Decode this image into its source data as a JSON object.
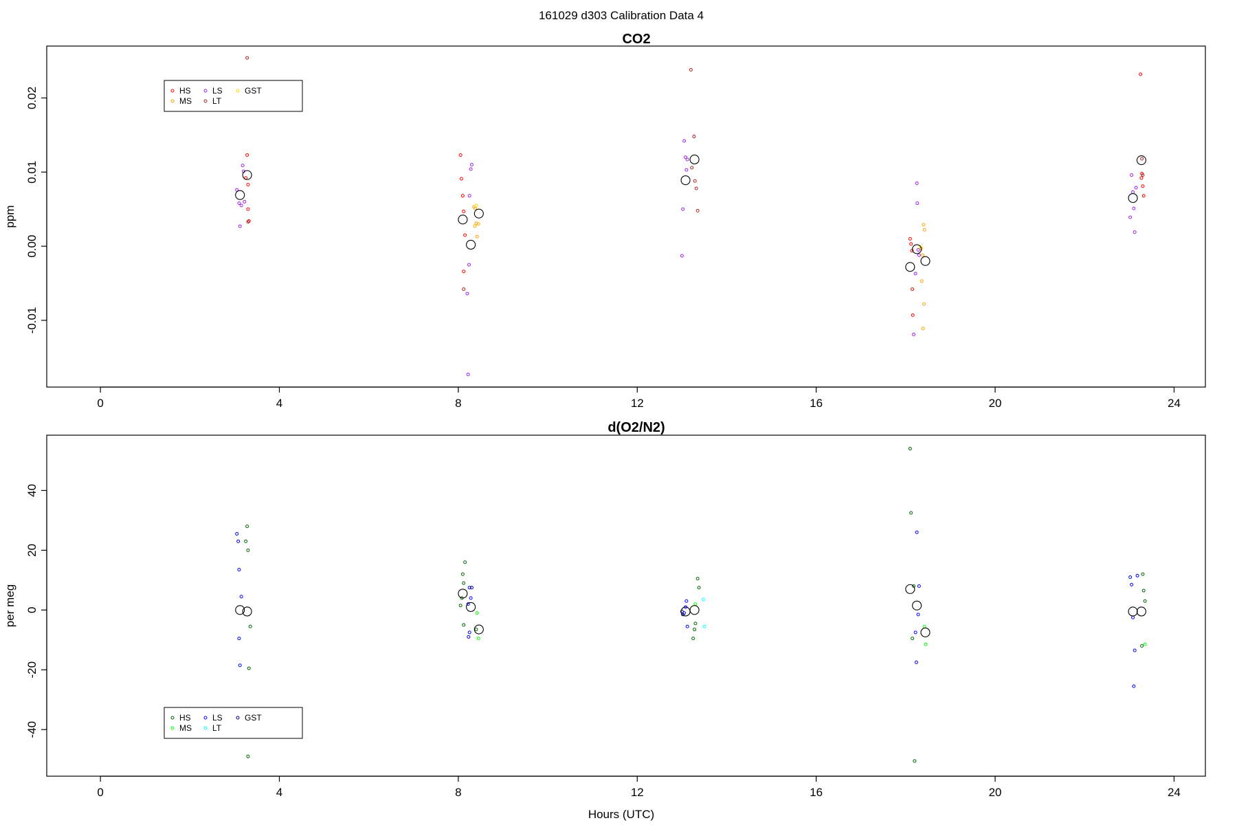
{
  "figure": {
    "title": "161029   d303   Calibration Data 4"
  },
  "chart_data": [
    {
      "type": "scatter",
      "title": "CO2",
      "xlabel": "",
      "ylabel": "ppm",
      "xlim": [
        -1.2,
        24.7
      ],
      "ylim": [
        -0.019,
        0.027
      ],
      "xticks": [
        0,
        4,
        8,
        12,
        16,
        20,
        24
      ],
      "yticks": [
        -0.01,
        0.0,
        0.01,
        0.02
      ],
      "ytick_labels": [
        "-0.01",
        "0.00",
        "0.01",
        "0.02"
      ],
      "legend": {
        "placement": "top-left",
        "entries": [
          {
            "label": "HS",
            "color": "#ff0000"
          },
          {
            "label": "MS",
            "color": "#ffa500"
          },
          {
            "label": "LS",
            "color": "#a020f0"
          },
          {
            "label": "LT",
            "color": "#b22222"
          },
          {
            "label": "GST",
            "color": "#ffd700"
          }
        ]
      },
      "series": [
        {
          "color": "#ff0000",
          "points": [
            [
              3.28,
              0.0123
            ],
            [
              3.3,
              0.0083
            ],
            [
              3.3,
              0.005
            ],
            [
              3.32,
              0.0034
            ],
            [
              3.25,
              0.0092
            ],
            [
              8.05,
              0.0123
            ],
            [
              8.07,
              0.0091
            ],
            [
              8.1,
              0.0068
            ],
            [
              8.12,
              0.0047
            ],
            [
              8.15,
              0.0015
            ],
            [
              8.12,
              -0.0034
            ],
            [
              18.1,
              0.001
            ],
            [
              18.12,
              0.0003
            ],
            [
              18.14,
              -0.0006
            ],
            [
              18.15,
              -0.0058
            ],
            [
              18.16,
              -0.0093
            ],
            [
              23.25,
              0.0232
            ],
            [
              23.28,
              0.0098
            ],
            [
              23.3,
              0.0081
            ],
            [
              23.32,
              0.0068
            ],
            [
              23.27,
              0.0092
            ]
          ]
        },
        {
          "color": "#b22222",
          "points": [
            [
              3.28,
              0.0254
            ],
            [
              3.3,
              0.0033
            ],
            [
              13.2,
              0.0238
            ],
            [
              13.27,
              0.0148
            ],
            [
              13.22,
              0.0106
            ],
            [
              13.32,
              0.0078
            ],
            [
              13.29,
              0.0088
            ],
            [
              13.35,
              0.0048
            ],
            [
              8.12,
              -0.0058
            ],
            [
              23.28,
              0.0118
            ],
            [
              23.3,
              0.0096
            ]
          ]
        },
        {
          "color": "#a020f0",
          "points": [
            [
              3.05,
              0.0076
            ],
            [
              3.1,
              0.0058
            ],
            [
              3.15,
              0.0055
            ],
            [
              3.2,
              0.0101
            ],
            [
              3.18,
              0.0109
            ],
            [
              3.12,
              0.0027
            ],
            [
              3.22,
              0.006
            ],
            [
              8.2,
              -0.0064
            ],
            [
              8.24,
              -0.0025
            ],
            [
              8.28,
              0.0104
            ],
            [
              8.3,
              0.011
            ],
            [
              8.25,
              0.0068
            ],
            [
              8.22,
              -0.0173
            ],
            [
              13.05,
              0.0142
            ],
            [
              13.08,
              0.012
            ],
            [
              13.1,
              0.0103
            ],
            [
              13.0,
              -0.0013
            ],
            [
              13.02,
              0.005
            ],
            [
              13.12,
              0.0117
            ],
            [
              18.25,
              0.0085
            ],
            [
              18.26,
              0.0058
            ],
            [
              18.22,
              -0.0037
            ],
            [
              18.18,
              -0.0119
            ],
            [
              23.05,
              0.0096
            ],
            [
              23.08,
              0.0073
            ],
            [
              23.1,
              0.0051
            ],
            [
              23.12,
              0.0019
            ],
            [
              23.02,
              0.0039
            ],
            [
              23.15,
              0.0079
            ],
            [
              18.3,
              -0.0012
            ],
            [
              18.28,
              -0.0005
            ]
          ]
        },
        {
          "color": "#ffa500",
          "points": [
            [
              8.35,
              0.0053
            ],
            [
              8.38,
              0.0051
            ],
            [
              8.4,
              0.0031
            ],
            [
              8.45,
              0.003
            ],
            [
              8.42,
              0.0013
            ],
            [
              8.37,
              0.0027
            ],
            [
              18.4,
              0.0029
            ],
            [
              18.42,
              0.0022
            ],
            [
              18.38,
              -0.0012
            ],
            [
              18.36,
              -0.0047
            ],
            [
              18.41,
              -0.0078
            ],
            [
              18.39,
              -0.0111
            ],
            [
              18.35,
              -0.0003
            ]
          ]
        },
        {
          "color": "#ffd700",
          "points": [
            [
              8.4,
              0.0055
            ],
            [
              18.34,
              -0.0001
            ]
          ]
        },
        {
          "color": "#000000",
          "marker": "mean",
          "points": [
            [
              3.12,
              0.0069
            ],
            [
              3.28,
              0.0096
            ],
            [
              8.1,
              0.0036
            ],
            [
              8.28,
              0.0002
            ],
            [
              8.46,
              0.0044
            ],
            [
              13.08,
              0.0089
            ],
            [
              13.28,
              0.0117
            ],
            [
              18.1,
              -0.0028
            ],
            [
              18.25,
              -0.0004
            ],
            [
              18.44,
              -0.002
            ],
            [
              23.08,
              0.0065
            ],
            [
              23.27,
              0.0116
            ]
          ]
        }
      ]
    },
    {
      "type": "scatter",
      "title": "d(O2/N2)",
      "xlabel": "Hours (UTC)",
      "ylabel": "per meg",
      "xlim": [
        -1.2,
        24.7
      ],
      "ylim": [
        -55.6,
        58.5
      ],
      "xticks": [
        0,
        4,
        8,
        12,
        16,
        20,
        24
      ],
      "yticks": [
        -40,
        -20,
        0,
        20,
        40
      ],
      "ytick_labels": [
        "-40",
        "-20",
        "0",
        "20",
        "40"
      ],
      "legend": {
        "placement": "bottom-left",
        "entries": [
          {
            "label": "HS",
            "color": "#006400"
          },
          {
            "label": "MS",
            "color": "#00ff00"
          },
          {
            "label": "LS",
            "color": "#0000ff"
          },
          {
            "label": "LT",
            "color": "#00ffff"
          },
          {
            "label": "GST",
            "color": "#00008b"
          }
        ]
      },
      "series": [
        {
          "color": "#006400",
          "points": [
            [
              3.28,
              28.0
            ],
            [
              3.25,
              23.0
            ],
            [
              3.3,
              20.0
            ],
            [
              3.35,
              -5.5
            ],
            [
              3.32,
              -19.5
            ],
            [
              3.3,
              -49.0
            ],
            [
              8.1,
              12.0
            ],
            [
              8.15,
              16.0
            ],
            [
              8.12,
              9.0
            ],
            [
              8.08,
              4.0
            ],
            [
              8.05,
              1.5
            ],
            [
              8.12,
              -5.0
            ],
            [
              8.4,
              -6.5
            ],
            [
              13.35,
              10.5
            ],
            [
              13.38,
              7.5
            ],
            [
              13.3,
              -4.5
            ],
            [
              13.28,
              -6.5
            ],
            [
              13.25,
              -9.5
            ],
            [
              18.1,
              54.0
            ],
            [
              18.12,
              32.5
            ],
            [
              18.18,
              8.0
            ],
            [
              18.15,
              -9.5
            ],
            [
              18.2,
              -50.5
            ],
            [
              23.3,
              12.0
            ],
            [
              23.32,
              6.5
            ],
            [
              23.35,
              3.0
            ],
            [
              23.28,
              -12.0
            ]
          ]
        },
        {
          "color": "#00ff00",
          "points": [
            [
              8.42,
              -1.0
            ],
            [
              8.45,
              -9.5
            ],
            [
              13.3,
              2.0
            ],
            [
              18.42,
              -5.5
            ],
            [
              18.45,
              -11.5
            ],
            [
              23.35,
              -11.5
            ]
          ]
        },
        {
          "color": "#0000ff",
          "points": [
            [
              3.05,
              25.5
            ],
            [
              3.08,
              23.0
            ],
            [
              3.1,
              13.5
            ],
            [
              3.15,
              4.5
            ],
            [
              3.1,
              -9.5
            ],
            [
              3.12,
              -18.5
            ],
            [
              8.25,
              7.5
            ],
            [
              8.28,
              4.0
            ],
            [
              8.22,
              2.0
            ],
            [
              8.25,
              -7.5
            ],
            [
              8.23,
              -9.0
            ],
            [
              13.1,
              3.0
            ],
            [
              13.08,
              1.0
            ],
            [
              13.05,
              -1.0
            ],
            [
              13.12,
              -5.5
            ],
            [
              18.25,
              26.0
            ],
            [
              18.3,
              8.0
            ],
            [
              18.28,
              -1.5
            ],
            [
              18.22,
              -7.5
            ],
            [
              18.24,
              -17.5
            ],
            [
              23.02,
              11.0
            ],
            [
              23.05,
              8.5
            ],
            [
              23.08,
              -2.5
            ],
            [
              23.12,
              -13.5
            ],
            [
              23.1,
              -25.5
            ],
            [
              23.18,
              11.5
            ]
          ]
        },
        {
          "color": "#00ffff",
          "points": [
            [
              13.48,
              3.5
            ],
            [
              13.5,
              -5.5
            ]
          ]
        },
        {
          "color": "#00008b",
          "points": [
            [
              8.3,
              7.5
            ],
            [
              13.0,
              -0.5
            ],
            [
              13.02,
              -1.5
            ]
          ]
        },
        {
          "color": "#000000",
          "marker": "mean",
          "points": [
            [
              3.12,
              0.0
            ],
            [
              3.28,
              -0.5
            ],
            [
              8.1,
              5.5
            ],
            [
              8.28,
              1.0
            ],
            [
              8.46,
              -6.5
            ],
            [
              13.08,
              -0.5
            ],
            [
              13.28,
              0.0
            ],
            [
              18.1,
              7.0
            ],
            [
              18.25,
              1.5
            ],
            [
              18.44,
              -7.5
            ],
            [
              23.08,
              -0.5
            ],
            [
              23.27,
              -0.5
            ]
          ]
        }
      ]
    }
  ]
}
